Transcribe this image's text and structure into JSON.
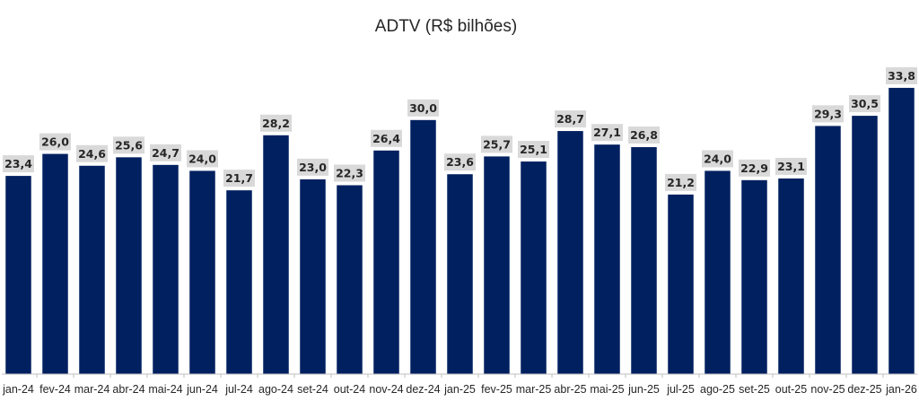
{
  "chart_data": {
    "type": "bar",
    "title": "ADTV (R$ bilhões)",
    "xlabel": "",
    "ylabel": "",
    "ylim": [
      0,
      34.5
    ],
    "grid": false,
    "legend": "none",
    "categories": [
      "jan-24",
      "fev-24",
      "mar-24",
      "abr-24",
      "mai-24",
      "jun-24",
      "jul-24",
      "ago-24",
      "set-24",
      "out-24",
      "nov-24",
      "dez-24",
      "jan-25",
      "fev-25",
      "mar-25",
      "abr-25",
      "mai-25",
      "jun-25",
      "jul-25",
      "ago-25",
      "set-25",
      "out-25",
      "nov-25",
      "dez-25",
      "jan-26"
    ],
    "values": [
      23.4,
      26.0,
      24.6,
      25.6,
      24.7,
      24.0,
      21.7,
      28.2,
      23.0,
      22.3,
      26.4,
      30.0,
      23.6,
      25.7,
      25.1,
      28.7,
      27.1,
      26.8,
      21.2,
      24.0,
      22.9,
      23.1,
      29.3,
      30.5,
      33.8
    ],
    "data_labels": [
      "23,4",
      "26,0",
      "24,6",
      "25,6",
      "24,7",
      "24,0",
      "21,7",
      "28,2",
      "23,0",
      "22,3",
      "26,4",
      "30,0",
      "23,6",
      "25,7",
      "25,1",
      "28,7",
      "27,1",
      "26,8",
      "21,2",
      "24,0",
      "22,9",
      "23,1",
      "29,3",
      "30,5",
      "33,8"
    ],
    "colors": {
      "bar": "#002060",
      "label_background": "#d9d9d9",
      "axis": "#bfbfbf",
      "text": "#262626"
    }
  }
}
